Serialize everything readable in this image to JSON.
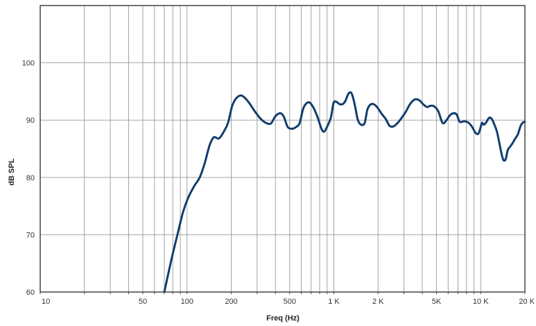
{
  "chart_data": {
    "type": "line",
    "title": "",
    "xlabel": "Freq (Hz)",
    "ylabel": "dB SPL",
    "x_scale": "log",
    "xlim": [
      10,
      20000
    ],
    "ylim": [
      60,
      110
    ],
    "grid": true,
    "x_ticks": [
      {
        "value": 10,
        "label": "10"
      },
      {
        "value": 50,
        "label": "50"
      },
      {
        "value": 100,
        "label": "100"
      },
      {
        "value": 200,
        "label": "200"
      },
      {
        "value": 500,
        "label": "500"
      },
      {
        "value": 1000,
        "label": "1 K"
      },
      {
        "value": 2000,
        "label": "2 K"
      },
      {
        "value": 5000,
        "label": "5K"
      },
      {
        "value": 10000,
        "label": "10 K"
      },
      {
        "value": 20000,
        "label": "20 K"
      }
    ],
    "x_gridlines": [
      10,
      20,
      30,
      40,
      50,
      60,
      70,
      80,
      90,
      100,
      200,
      300,
      400,
      500,
      600,
      700,
      800,
      900,
      1000,
      2000,
      3000,
      4000,
      5000,
      6000,
      7000,
      8000,
      9000,
      10000,
      20000
    ],
    "y_ticks": [
      {
        "value": 60,
        "label": "60"
      },
      {
        "value": 70,
        "label": "70"
      },
      {
        "value": 80,
        "label": "80"
      },
      {
        "value": 90,
        "label": "90"
      },
      {
        "value": 100,
        "label": "100"
      }
    ],
    "colors": {
      "line": "#123d6e",
      "grid": "#999999",
      "frame": "#444444"
    },
    "series": [
      {
        "x": [
          70,
          78,
          86,
          94,
          102,
          112,
          122,
          132,
          142,
          152,
          165,
          178,
          190,
          203,
          216,
          231,
          245,
          265,
          290,
          318,
          346,
          372,
          395,
          412,
          435,
          458,
          485,
          520,
          553,
          585,
          618,
          655,
          690,
          732,
          775,
          823,
          860,
          905,
          955,
          995,
          1040,
          1092,
          1150,
          1200,
          1255,
          1310,
          1355,
          1400,
          1458,
          1535,
          1620,
          1690,
          1770,
          1860,
          1950,
          2030,
          2130,
          2255,
          2395,
          2545,
          2715,
          2895,
          3095,
          3300,
          3550,
          3800,
          4050,
          4300,
          4550,
          4825,
          5150,
          5500,
          5850,
          6150,
          6500,
          6850,
          7200,
          7700,
          8200,
          8700,
          9200,
          9600,
          9850,
          10200,
          10500,
          10900,
          11400,
          11900,
          12400,
          12900,
          13400,
          13900,
          14300,
          14800,
          15300,
          15900,
          16500,
          17200,
          17900,
          18700,
          19400,
          20000
        ],
        "y": [
          60,
          65.5,
          70,
          74,
          76.5,
          78.5,
          80,
          82.5,
          85.5,
          87.0,
          86.8,
          88.0,
          89.5,
          92.5,
          93.8,
          94.3,
          94.0,
          93.0,
          91.5,
          90.2,
          89.5,
          89.4,
          90.5,
          91.0,
          91.2,
          90.5,
          88.8,
          88.5,
          88.8,
          89.5,
          92.0,
          93.0,
          93.0,
          92.0,
          90.5,
          88.5,
          88.0,
          89.0,
          90.5,
          93.0,
          93.2,
          92.8,
          92.8,
          93.4,
          94.6,
          94.8,
          93.8,
          92.2,
          90.0,
          89.2,
          89.5,
          91.8,
          92.7,
          92.8,
          92.4,
          91.8,
          91.0,
          90.2,
          89.0,
          88.9,
          89.5,
          90.4,
          91.5,
          92.8,
          93.6,
          93.5,
          92.8,
          92.3,
          92.5,
          92.4,
          91.5,
          89.5,
          90.0,
          90.8,
          91.2,
          91.0,
          89.7,
          89.8,
          89.6,
          88.9,
          87.8,
          87.6,
          88.2,
          89.5,
          89.2,
          89.6,
          90.4,
          90.2,
          89.2,
          88.0,
          86.0,
          84.0,
          83.0,
          83.2,
          84.8,
          85.4,
          86.0,
          86.8,
          87.5,
          89.0,
          89.6,
          89.7
        ]
      }
    ]
  }
}
